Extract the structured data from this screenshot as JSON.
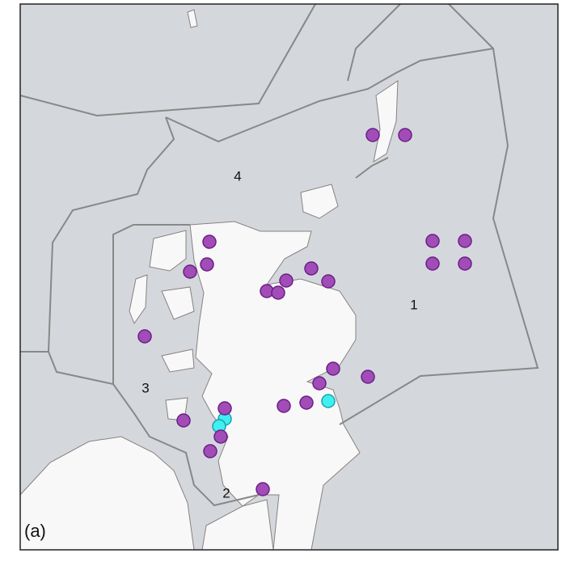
{
  "panel_label": "(a)",
  "regions": [
    {
      "label": "1"
    },
    {
      "label": "2"
    },
    {
      "label": "3"
    },
    {
      "label": "4"
    }
  ]
}
